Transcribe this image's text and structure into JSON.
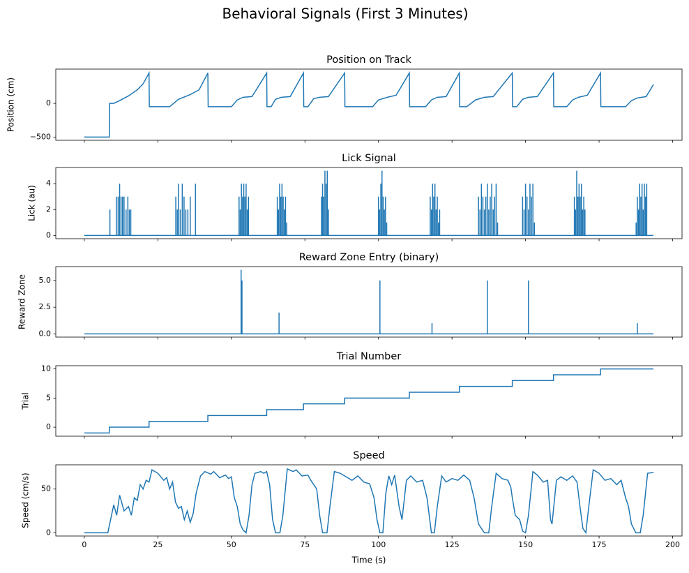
{
  "title": "Behavioral Signals (First 3 Minutes)",
  "chart_data": [
    {
      "type": "line",
      "title": "Position on Track",
      "ylabel": "Position (cm)",
      "color": "#1f77b4",
      "x": [
        0,
        8.5,
        8.6,
        10,
        12,
        15,
        18,
        20,
        22,
        22.1,
        29,
        32,
        36,
        39,
        42,
        42.1,
        50,
        52,
        54,
        57,
        62,
        62.1,
        63.5,
        65,
        67,
        70,
        74.5,
        74.6,
        76,
        78,
        80,
        83,
        88.5,
        88.6,
        98,
        100,
        103,
        106,
        110.5,
        110.6,
        116,
        118,
        120,
        123,
        127.5,
        127.6,
        130,
        133,
        136,
        139,
        145.5,
        145.6,
        147,
        149,
        151,
        154,
        159.5,
        159.6,
        164,
        166,
        168,
        171,
        175.5,
        175.6,
        184,
        186,
        188,
        191,
        193.5
      ],
      "values": [
        -500,
        -500,
        0,
        0,
        40,
        110,
        200,
        290,
        450,
        -50,
        -50,
        60,
        130,
        200,
        450,
        -50,
        -50,
        50,
        90,
        100,
        450,
        -50,
        -50,
        60,
        90,
        100,
        450,
        -50,
        -50,
        70,
        90,
        100,
        450,
        -50,
        -50,
        50,
        90,
        120,
        450,
        -50,
        -50,
        50,
        90,
        100,
        450,
        -50,
        -50,
        50,
        90,
        100,
        450,
        -50,
        -50,
        60,
        90,
        100,
        450,
        -50,
        -50,
        50,
        90,
        120,
        450,
        -50,
        -50,
        40,
        80,
        100,
        280
      ],
      "xlim": [
        -9.7,
        203.2
      ],
      "xticks": [
        0,
        25,
        50,
        75,
        100,
        125,
        150,
        175,
        200
      ],
      "ylim": [
        -548,
        508
      ],
      "yticks": [
        {
          "value": -500,
          "label": "−500"
        },
        0
      ]
    },
    {
      "type": "spikes",
      "title": "Lick Signal",
      "ylabel": "Lick (au)",
      "color": "#1f77b4",
      "x": [
        0,
        8.7,
        10.9,
        11.5,
        12.0,
        12.5,
        13.0,
        13.5,
        14.2,
        14.8,
        15.3,
        15.8,
        31.1,
        31.6,
        32.0,
        32.6,
        33.3,
        33.9,
        34.5,
        35.2,
        36.0,
        37.8,
        52.6,
        53.0,
        53.4,
        53.8,
        54.2,
        54.6,
        55.0,
        55.4,
        55.8,
        65.6,
        66.0,
        66.4,
        66.8,
        67.2,
        67.6,
        68.0,
        68.4,
        68.8,
        80.6,
        81.0,
        81.4,
        81.8,
        82.2,
        82.6,
        83.0,
        100.0,
        100.4,
        100.8,
        101.2,
        101.6,
        102.0,
        102.4,
        102.8,
        117.6,
        118.0,
        118.4,
        118.8,
        119.2,
        119.6,
        120.0,
        120.4,
        120.8,
        134.0,
        134.5,
        135.0,
        135.5,
        136.0,
        136.5,
        137.0,
        137.5,
        138.0,
        138.5,
        139.0,
        139.5,
        140.0,
        140.5,
        149.0,
        149.5,
        150.0,
        150.5,
        151.0,
        151.5,
        152.0,
        152.5,
        153.0,
        166.6,
        167.0,
        167.4,
        167.8,
        168.2,
        168.6,
        169.0,
        169.4,
        169.8,
        170.2,
        187.6,
        188.0,
        188.4,
        188.8,
        189.2,
        189.6,
        190.0,
        190.4,
        190.8,
        191.2,
        193.5
      ],
      "values": [
        0,
        2,
        3,
        3,
        4,
        3,
        3,
        3,
        2,
        3,
        2,
        2,
        3,
        2,
        4,
        2,
        4,
        3,
        2,
        2,
        3,
        4,
        3,
        2,
        4,
        3,
        4,
        3,
        4,
        2,
        3,
        3,
        2,
        4,
        3,
        4,
        3,
        2,
        3,
        1,
        3,
        4,
        3,
        5,
        4,
        5,
        2,
        3,
        2,
        4,
        5,
        3,
        2,
        3,
        1,
        3,
        2,
        4,
        3,
        4,
        2,
        3,
        1,
        2,
        3,
        2,
        4,
        3,
        2,
        3,
        4,
        2,
        3,
        4,
        2,
        3,
        4,
        1,
        3,
        2,
        4,
        3,
        2,
        4,
        3,
        4,
        1,
        3,
        2,
        5,
        3,
        4,
        3,
        4,
        2,
        3,
        2,
        1,
        3,
        2,
        4,
        3,
        4,
        2,
        4,
        3,
        4,
        0
      ],
      "xlim": [
        -9.7,
        203.2
      ],
      "xticks": [
        0,
        25,
        50,
        75,
        100,
        125,
        150,
        175,
        200
      ],
      "ylim": [
        -0.25,
        5.25
      ],
      "yticks": [
        0,
        2,
        4
      ]
    },
    {
      "type": "spikes",
      "title": "Reward Zone Entry (binary)",
      "ylabel": "Reward Zone",
      "color": "#1f77b4",
      "x": [
        0,
        53.3,
        53.6,
        66.2,
        100.5,
        118.2,
        137.0,
        151.0,
        188.0,
        193.5
      ],
      "values": [
        0,
        6,
        5,
        2,
        5,
        1,
        5,
        5,
        1,
        0
      ],
      "xlim": [
        -9.7,
        203.2
      ],
      "xticks": [
        0,
        25,
        50,
        75,
        100,
        125,
        150,
        175,
        200
      ],
      "ylim": [
        -0.3,
        6.3
      ],
      "yticks": [
        {
          "value": 0,
          "label": "0.0"
        },
        2.5,
        {
          "value": 5,
          "label": "5.0"
        }
      ]
    },
    {
      "type": "step",
      "title": "Trial Number",
      "ylabel": "Trial",
      "color": "#1f77b4",
      "x": [
        0,
        8.5,
        22,
        42,
        62,
        74.5,
        88.5,
        110.5,
        127.5,
        145.5,
        159.5,
        175.5,
        193.5
      ],
      "values": [
        -1,
        0,
        1,
        2,
        3,
        4,
        5,
        6,
        7,
        8,
        9,
        10,
        10
      ],
      "xlim": [
        -9.7,
        203.2
      ],
      "xticks": [
        0,
        25,
        50,
        75,
        100,
        125,
        150,
        175,
        200
      ],
      "ylim": [
        -1.55,
        10.55
      ],
      "yticks": [
        0,
        5,
        10
      ]
    },
    {
      "type": "line",
      "title": "Speed",
      "ylabel": "Speed (cm/s)",
      "xlabel": "Time (s)",
      "color": "#1f77b4",
      "x": [
        0,
        8,
        10,
        11,
        12,
        13.5,
        15,
        16,
        17,
        18,
        19,
        20,
        21,
        22,
        23,
        25,
        27,
        28,
        29,
        30,
        31,
        32,
        33,
        34,
        35,
        36,
        37,
        38,
        39.5,
        41,
        43,
        44,
        46,
        48,
        49,
        50,
        51,
        52,
        53,
        54,
        55,
        56,
        57,
        58,
        60,
        61,
        62,
        63,
        64,
        65,
        66.5,
        67.5,
        69,
        71,
        72,
        74,
        76,
        77,
        78,
        79,
        80,
        81,
        82.5,
        83.5,
        85,
        87,
        89,
        91,
        93,
        95,
        97,
        98.5,
        99.5,
        100.5,
        101.5,
        102.5,
        103.5,
        104.5,
        105.5,
        107,
        108,
        109.5,
        111,
        113,
        115,
        116.5,
        118,
        119,
        120,
        121.5,
        123,
        125,
        127,
        129,
        131,
        132.5,
        134,
        136,
        137.5,
        138.5,
        140,
        142,
        144,
        145,
        145.5,
        146.5,
        148,
        149,
        150,
        151,
        152.5,
        154,
        156,
        157.5,
        158.5,
        159,
        160.5,
        162,
        164,
        166,
        167.5,
        168.5,
        169.5,
        170.5,
        171.5,
        173,
        175,
        177,
        179,
        181,
        182.5,
        184,
        185,
        186,
        187.5,
        189,
        190,
        191.5,
        193.5
      ],
      "values": [
        0,
        0,
        32,
        20,
        43,
        25,
        30,
        20,
        40,
        37,
        55,
        50,
        60,
        58,
        72,
        68,
        60,
        63,
        50,
        58,
        35,
        28,
        30,
        15,
        25,
        12,
        22,
        45,
        65,
        70,
        67,
        70,
        63,
        66,
        62,
        64,
        40,
        30,
        10,
        3,
        0,
        20,
        55,
        68,
        70,
        68,
        70,
        55,
        15,
        0,
        0,
        20,
        73,
        70,
        72,
        65,
        66,
        60,
        55,
        50,
        20,
        0,
        0,
        30,
        70,
        68,
        64,
        60,
        65,
        58,
        56,
        40,
        15,
        0,
        0,
        45,
        65,
        55,
        66,
        30,
        15,
        60,
        65,
        58,
        60,
        40,
        0,
        0,
        30,
        65,
        58,
        62,
        60,
        66,
        60,
        40,
        10,
        0,
        0,
        30,
        68,
        62,
        60,
        52,
        40,
        20,
        15,
        2,
        0,
        20,
        70,
        66,
        58,
        60,
        15,
        10,
        60,
        64,
        60,
        65,
        58,
        30,
        5,
        0,
        30,
        72,
        68,
        60,
        62,
        55,
        60,
        40,
        30,
        10,
        0,
        0,
        20,
        68,
        69
      ],
      "xlim": [
        -9.7,
        203.2
      ],
      "xticks": [
        0,
        25,
        50,
        75,
        100,
        125,
        150,
        175,
        200
      ],
      "ylim": [
        -3.7,
        77.7
      ],
      "yticks": [
        0,
        50
      ]
    }
  ]
}
